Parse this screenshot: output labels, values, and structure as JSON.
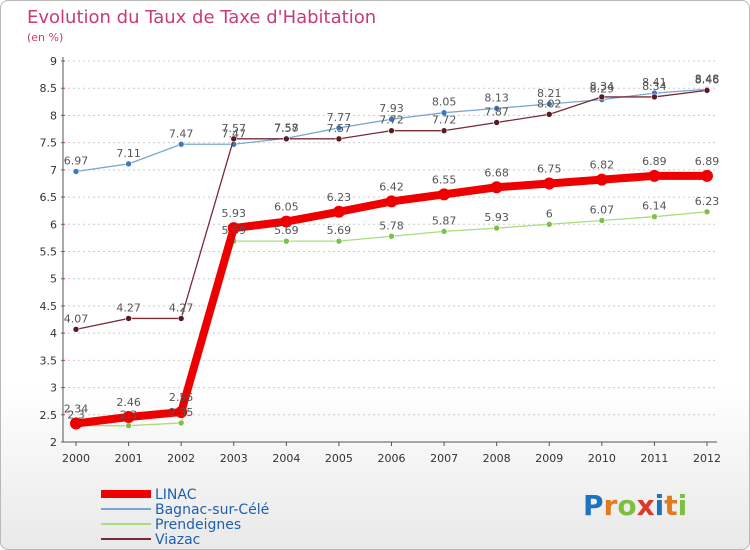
{
  "page": {
    "title": "Evolution du Taux de Taxe d'Habitation",
    "subtitle": "(en %)",
    "logo_text": "Proxiti"
  },
  "colors": {
    "title": "#c83a7a",
    "grid": "#cccccc",
    "axis": "#555555",
    "logo": [
      "#1e73be",
      "#e27a1f",
      "#7fbf3f",
      "#d93a2b",
      "#1e73be",
      "#e27a1f",
      "#7fbf3f"
    ]
  },
  "chart_data": {
    "type": "line",
    "x": [
      "2000",
      "2001",
      "2002",
      "2003",
      "2004",
      "2005",
      "2006",
      "2007",
      "2008",
      "2009",
      "2010",
      "2011",
      "2012"
    ],
    "ylim": [
      2,
      9
    ],
    "yticks": [
      "2",
      "2.5",
      "3",
      "3.5",
      "4",
      "4.5",
      "5",
      "5.5",
      "6",
      "6.5",
      "7",
      "7.5",
      "8",
      "8.5",
      "9"
    ],
    "grid": "horizontal",
    "legend_position": "bottom-left",
    "series": [
      {
        "name": "LINAC",
        "color": "#ee0000",
        "marker": "#ee0000",
        "width": "thick",
        "values": [
          2.34,
          2.46,
          2.55,
          5.93,
          6.05,
          6.23,
          6.42,
          6.55,
          6.68,
          6.75,
          6.82,
          6.89,
          6.89
        ],
        "labels": [
          "2.34",
          "2.46",
          "2.55",
          "5.93",
          "6.05",
          "6.23",
          "6.42",
          "6.55",
          "6.68",
          "6.75",
          "6.82",
          "6.89",
          "6.89"
        ]
      },
      {
        "name": "Bagnac-sur-Célé",
        "color": "#7aa7d2",
        "marker": "#3a78c2",
        "width": "thin",
        "values": [
          6.97,
          7.11,
          7.47,
          7.47,
          7.58,
          7.77,
          7.93,
          8.05,
          8.13,
          8.21,
          8.29,
          8.41,
          8.48
        ],
        "labels": [
          "6.97",
          "7.11",
          "7.47",
          "7.47",
          "7.58",
          "7.77",
          "7.93",
          "8.05",
          "8.13",
          "8.21",
          "8.29",
          "8.41",
          "8.48"
        ]
      },
      {
        "name": "Prendeignes",
        "color": "#a9de7a",
        "marker": "#7cc04a",
        "width": "thin",
        "values": [
          2.3,
          2.3,
          2.35,
          5.69,
          5.69,
          5.69,
          5.78,
          5.87,
          5.93,
          6,
          6.07,
          6.14,
          6.23
        ],
        "labels": [
          "2.3",
          "2.3",
          "2.35",
          "5.69",
          "5.69",
          "5.69",
          "5.78",
          "5.87",
          "5.93",
          "6",
          "6.07",
          "6.14",
          "6.23"
        ]
      },
      {
        "name": "Viazac",
        "color": "#7a2b35",
        "marker": "#5a1a22",
        "width": "thin",
        "values": [
          4.07,
          4.27,
          4.27,
          7.57,
          7.57,
          7.57,
          7.72,
          7.72,
          7.87,
          8.02,
          8.34,
          8.34,
          8.46
        ],
        "labels": [
          "4.07",
          "4.27",
          "4.27",
          "7.57",
          "7.57",
          "7.57",
          "7.72",
          "7.72",
          "7.87",
          "8.02",
          "8.34",
          "8.34",
          "8.46"
        ]
      }
    ]
  }
}
